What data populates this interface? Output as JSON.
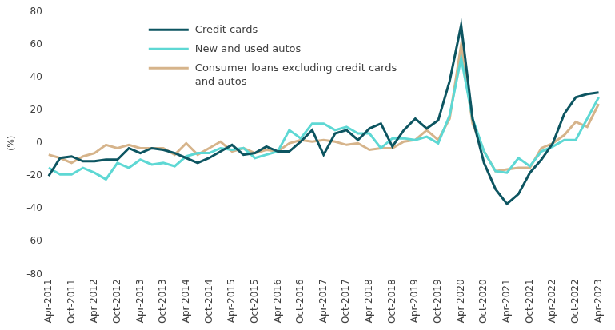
{
  "chart_data": {
    "type": "line",
    "y_label": "(%)",
    "categories": [
      "Apr-2011",
      null,
      "Oct-2011",
      null,
      "Apr-2012",
      null,
      "Oct-2012",
      null,
      "Apr-2013",
      null,
      "Oct-2013",
      null,
      "Apr-2014",
      null,
      "Oct-2014",
      null,
      "Apr-2015",
      null,
      "Oct-2015",
      null,
      "Apr-2016",
      null,
      "Oct-2016",
      null,
      "Apr-2017",
      null,
      "Oct-2017",
      null,
      "Apr-2018",
      null,
      "Oct-2018",
      null,
      "Apr-2019",
      null,
      "Oct-2019",
      null,
      "Apr-2020",
      null,
      "Oct-2020",
      null,
      "Apr-2021",
      null,
      "Oct-2021",
      null,
      "Apr-2022",
      null,
      "Oct-2022",
      null,
      "Apr-2023"
    ],
    "series": [
      {
        "name": "Credit cards",
        "color": "#0d5561",
        "values": [
          -20,
          -9,
          -8,
          -11,
          -11,
          -10,
          -10,
          -3,
          -6,
          -3,
          -4,
          -6,
          -9,
          -12,
          -9,
          -5,
          -1,
          -7,
          -6,
          -2,
          -5,
          -5,
          1,
          8,
          -7,
          6,
          8,
          2,
          9,
          12,
          -2,
          8,
          15,
          9,
          14,
          38,
          72,
          15,
          -12,
          -28,
          -37,
          -31,
          -18,
          -10,
          0,
          18,
          28,
          30,
          31
        ]
      },
      {
        "name": "New and used autos",
        "color": "#5ed8d4",
        "values": [
          -15,
          -19,
          -19,
          -15,
          -18,
          -22,
          -12,
          -15,
          -10,
          -13,
          -12,
          -14,
          -8,
          -6,
          -6,
          -3,
          -4,
          -3,
          -9,
          -7,
          -5,
          8,
          3,
          12,
          12,
          8,
          10,
          6,
          6,
          -3,
          3,
          3,
          2,
          4,
          0,
          17,
          52,
          15,
          -5,
          -17,
          -18,
          -9,
          -14,
          -5,
          -2,
          2,
          2,
          15,
          28
        ]
      },
      {
        "name": "Consumer loans excluding credit cards and autos",
        "color": "#d6b48b",
        "values": [
          -7,
          -9,
          -12,
          -8,
          -6,
          -1,
          -3,
          -1,
          -3,
          -3,
          -3,
          -7,
          0,
          -7,
          -3,
          1,
          -5,
          -3,
          -6,
          -4,
          -5,
          0,
          2,
          1,
          2,
          1,
          -1,
          0,
          -4,
          -3,
          -3,
          1,
          2,
          8,
          2,
          15,
          60,
          12,
          -5,
          -17,
          -16,
          -15,
          -15,
          -3,
          0,
          5,
          13,
          10,
          24
        ]
      }
    ],
    "ylim": [
      -80,
      80
    ],
    "yticks": [
      -80,
      -60,
      -40,
      -20,
      0,
      20,
      40,
      60,
      80
    ],
    "grid": false,
    "legend": "top-left"
  }
}
